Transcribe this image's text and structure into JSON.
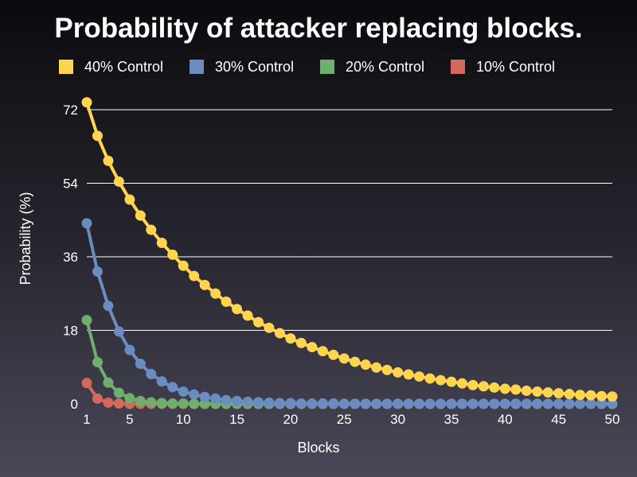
{
  "chart_data": {
    "type": "line",
    "title": "Probability of attacker replacing blocks.",
    "xlabel": "Blocks",
    "ylabel": "Probability (%)",
    "xlim": [
      1,
      50
    ],
    "ylim": [
      0,
      72
    ],
    "x_ticks": [
      1,
      5,
      10,
      15,
      20,
      25,
      30,
      35,
      40,
      45,
      50
    ],
    "y_ticks": [
      0,
      18,
      36,
      54,
      72
    ],
    "grid": "horizontal",
    "legend_position": "top",
    "x": [
      1,
      2,
      3,
      4,
      5,
      6,
      7,
      8,
      9,
      10,
      11,
      12,
      13,
      14,
      15,
      16,
      17,
      18,
      19,
      20,
      21,
      22,
      23,
      24,
      25,
      26,
      27,
      28,
      29,
      30,
      31,
      32,
      33,
      34,
      35,
      36,
      37,
      38,
      39,
      40,
      41,
      42,
      43,
      44,
      45,
      46,
      47,
      48,
      49,
      50
    ],
    "series": [
      {
        "name": "40% Control",
        "color": "#ffd54f",
        "values": [
          73.8,
          65.6,
          59.5,
          54.4,
          50.0,
          46.1,
          42.6,
          39.4,
          36.5,
          33.8,
          31.3,
          29.1,
          27.0,
          25.0,
          23.2,
          21.6,
          20.0,
          18.6,
          17.3,
          16.0,
          14.9,
          13.9,
          12.9,
          12.0,
          11.1,
          10.3,
          9.6,
          8.9,
          8.3,
          7.7,
          7.2,
          6.7,
          6.2,
          5.8,
          5.4,
          5.0,
          4.6,
          4.3,
          4.0,
          3.7,
          3.5,
          3.2,
          3.0,
          2.8,
          2.6,
          2.4,
          2.2,
          2.1,
          1.9,
          1.8
        ]
      },
      {
        "name": "30% Control",
        "color": "#6b8cc0",
        "values": [
          44.2,
          32.4,
          24.0,
          17.7,
          13.2,
          9.8,
          7.3,
          5.5,
          4.1,
          3.0,
          2.3,
          1.7,
          1.3,
          0.9,
          0.7,
          0.5,
          0.4,
          0.3,
          0.2,
          0.2,
          0.1,
          0.1,
          0.1,
          0.1,
          0,
          0,
          0,
          0,
          0,
          0,
          0,
          0,
          0,
          0,
          0,
          0,
          0,
          0,
          0,
          0,
          0,
          0,
          0,
          0,
          0,
          0,
          0,
          0,
          0,
          0
        ]
      },
      {
        "name": "20% Control",
        "color": "#6fae6c",
        "values": [
          20.5,
          10.2,
          5.2,
          2.7,
          1.4,
          0.7,
          0.4,
          0.2,
          0.1,
          0.1,
          0,
          0,
          0,
          0,
          0,
          0,
          0,
          0,
          0,
          0,
          0,
          0,
          0,
          0,
          0,
          0,
          0,
          0,
          0,
          0,
          0,
          0,
          0,
          0,
          0,
          0,
          0,
          0,
          0,
          0,
          0,
          0,
          0,
          0,
          0,
          0,
          0,
          0,
          0,
          0
        ]
      },
      {
        "name": "10% Control",
        "color": "#d26a5c",
        "values": [
          5.1,
          1.3,
          0.3,
          0.1,
          0,
          0,
          0,
          0,
          0,
          0,
          0,
          0,
          0,
          0,
          0,
          0,
          0,
          0,
          0,
          0,
          0,
          0,
          0,
          0,
          0,
          0,
          0,
          0,
          0,
          0,
          0,
          0,
          0,
          0,
          0,
          0,
          0,
          0,
          0,
          0,
          0,
          0,
          0,
          0,
          0,
          0,
          0,
          0,
          0,
          0
        ]
      }
    ]
  }
}
